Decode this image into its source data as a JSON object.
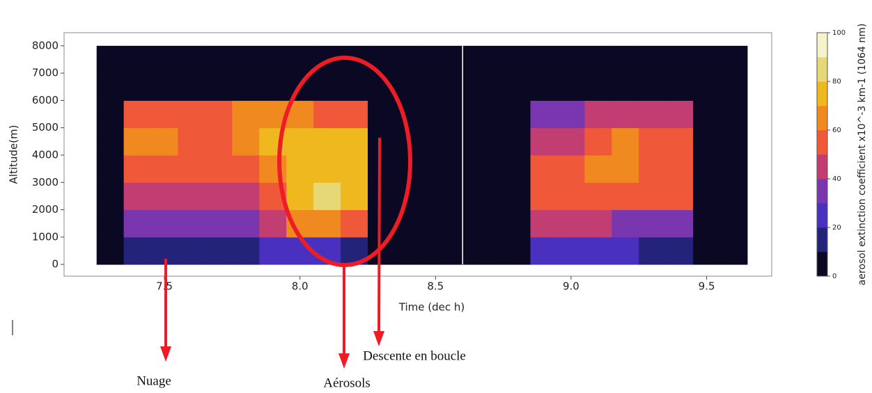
{
  "chart_data": {
    "type": "heatmap",
    "x_label": "Time (dec h)",
    "y_label": "Altitude(m)",
    "xlim": [
      7.13,
      9.74
    ],
    "ylim": [
      -430,
      8480
    ],
    "xticks": [
      {
        "value": 7.5,
        "label": "7.5"
      },
      {
        "value": 8.0,
        "label": "8.0"
      },
      {
        "value": 8.5,
        "label": "8.5"
      },
      {
        "value": 9.0,
        "label": "9.0"
      },
      {
        "value": 9.5,
        "label": "9.5"
      }
    ],
    "yticks": [
      0,
      1000,
      2000,
      3000,
      4000,
      5000,
      6000,
      7000,
      8000
    ],
    "x_edges": [
      7.25,
      7.35,
      7.45,
      7.55,
      7.65,
      7.75,
      7.85,
      7.95,
      8.05,
      8.15,
      8.25,
      8.35,
      8.45,
      8.55,
      8.65,
      8.75,
      8.85,
      8.95,
      9.05,
      9.15,
      9.25,
      9.35,
      9.45,
      9.55,
      9.65
    ],
    "y_edges": [
      0,
      1000,
      2000,
      3000,
      4000,
      5000,
      6000,
      7000,
      8000
    ],
    "z": [
      [
        0,
        15,
        15,
        15,
        10,
        15,
        20,
        20,
        20,
        15,
        0,
        0,
        0,
        0,
        0,
        0,
        20,
        20,
        20,
        20,
        15,
        15,
        0,
        0
      ],
      [
        0,
        30,
        35,
        35,
        30,
        35,
        45,
        60,
        60,
        55,
        0,
        0,
        0,
        0,
        0,
        0,
        40,
        45,
        40,
        35,
        35,
        35,
        0,
        0
      ],
      [
        0,
        40,
        45,
        45,
        40,
        45,
        55,
        70,
        80,
        75,
        0,
        0,
        0,
        0,
        0,
        0,
        50,
        55,
        55,
        55,
        50,
        50,
        0,
        0
      ],
      [
        0,
        55,
        55,
        55,
        50,
        55,
        65,
        70,
        75,
        70,
        0,
        0,
        0,
        0,
        0,
        0,
        55,
        55,
        60,
        60,
        55,
        55,
        0,
        0
      ],
      [
        0,
        60,
        60,
        55,
        55,
        60,
        70,
        75,
        70,
        70,
        0,
        0,
        0,
        0,
        0,
        0,
        45,
        45,
        55,
        60,
        55,
        55,
        0,
        0
      ],
      [
        0,
        55,
        55,
        55,
        50,
        60,
        60,
        65,
        55,
        50,
        0,
        0,
        0,
        0,
        0,
        0,
        35,
        35,
        40,
        45,
        45,
        45,
        0,
        0
      ],
      [
        0,
        0,
        0,
        0,
        0,
        0,
        0,
        0,
        0,
        0,
        0,
        0,
        0,
        0,
        0,
        0,
        0,
        0,
        0,
        0,
        0,
        0,
        0,
        0
      ],
      [
        0,
        0,
        0,
        0,
        0,
        0,
        0,
        0,
        0,
        0,
        0,
        0,
        0,
        0,
        0,
        0,
        0,
        0,
        0,
        0,
        0,
        0,
        0,
        0
      ]
    ],
    "colorbar": {
      "label": "aerosol extinction coefficient x10^-3 km-1 (1064 nm)",
      "lim": [
        0,
        100
      ],
      "ticks": [
        0,
        20,
        40,
        60,
        80,
        100
      ],
      "colors": [
        "#0a0822",
        "#23237a",
        "#4a30bf",
        "#7a36ae",
        "#c23d72",
        "#f0583a",
        "#f08a20",
        "#eeb81e",
        "#e6d876",
        "#f6f3cc"
      ]
    },
    "annotations": [
      {
        "text": "Nuage"
      },
      {
        "text": "Aérosols"
      },
      {
        "text": "Descente en boucle"
      }
    ]
  }
}
